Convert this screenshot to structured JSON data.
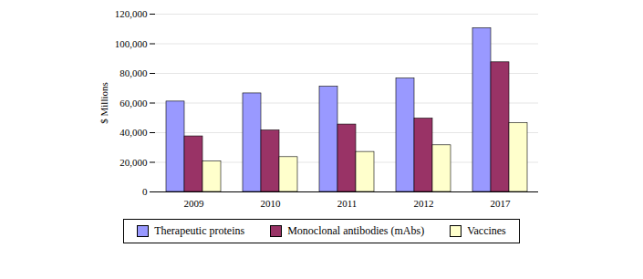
{
  "chart_data": {
    "type": "bar",
    "y_label": "$ Millions",
    "categories": [
      "2009",
      "2010",
      "2011",
      "2012",
      "2017"
    ],
    "series": [
      {
        "name": "Therapeutic proteins",
        "color": "#9999ff",
        "values": [
          61000,
          66500,
          71000,
          76500,
          110500
        ]
      },
      {
        "name": "Monoclonal antibodies (mAbs)",
        "color": "#993366",
        "values": [
          37500,
          41500,
          45500,
          49500,
          87500
        ]
      },
      {
        "name": "Vaccines",
        "color": "#ffffcc",
        "values": [
          20500,
          23500,
          27000,
          31500,
          46500
        ]
      }
    ],
    "ylim": [
      0,
      120000
    ],
    "yticks": [
      0,
      {
        "value": 20000,
        "label": "20,000"
      },
      {
        "value": 40000,
        "label": "40,000"
      },
      {
        "value": 60000,
        "label": "60,000"
      },
      {
        "value": 80000,
        "label": "80,000"
      },
      {
        "value": 100000,
        "label": "100,000"
      },
      {
        "value": 120000,
        "label": "120,000"
      }
    ],
    "grid": true,
    "legend": "bottom",
    "data_labels": false
  }
}
